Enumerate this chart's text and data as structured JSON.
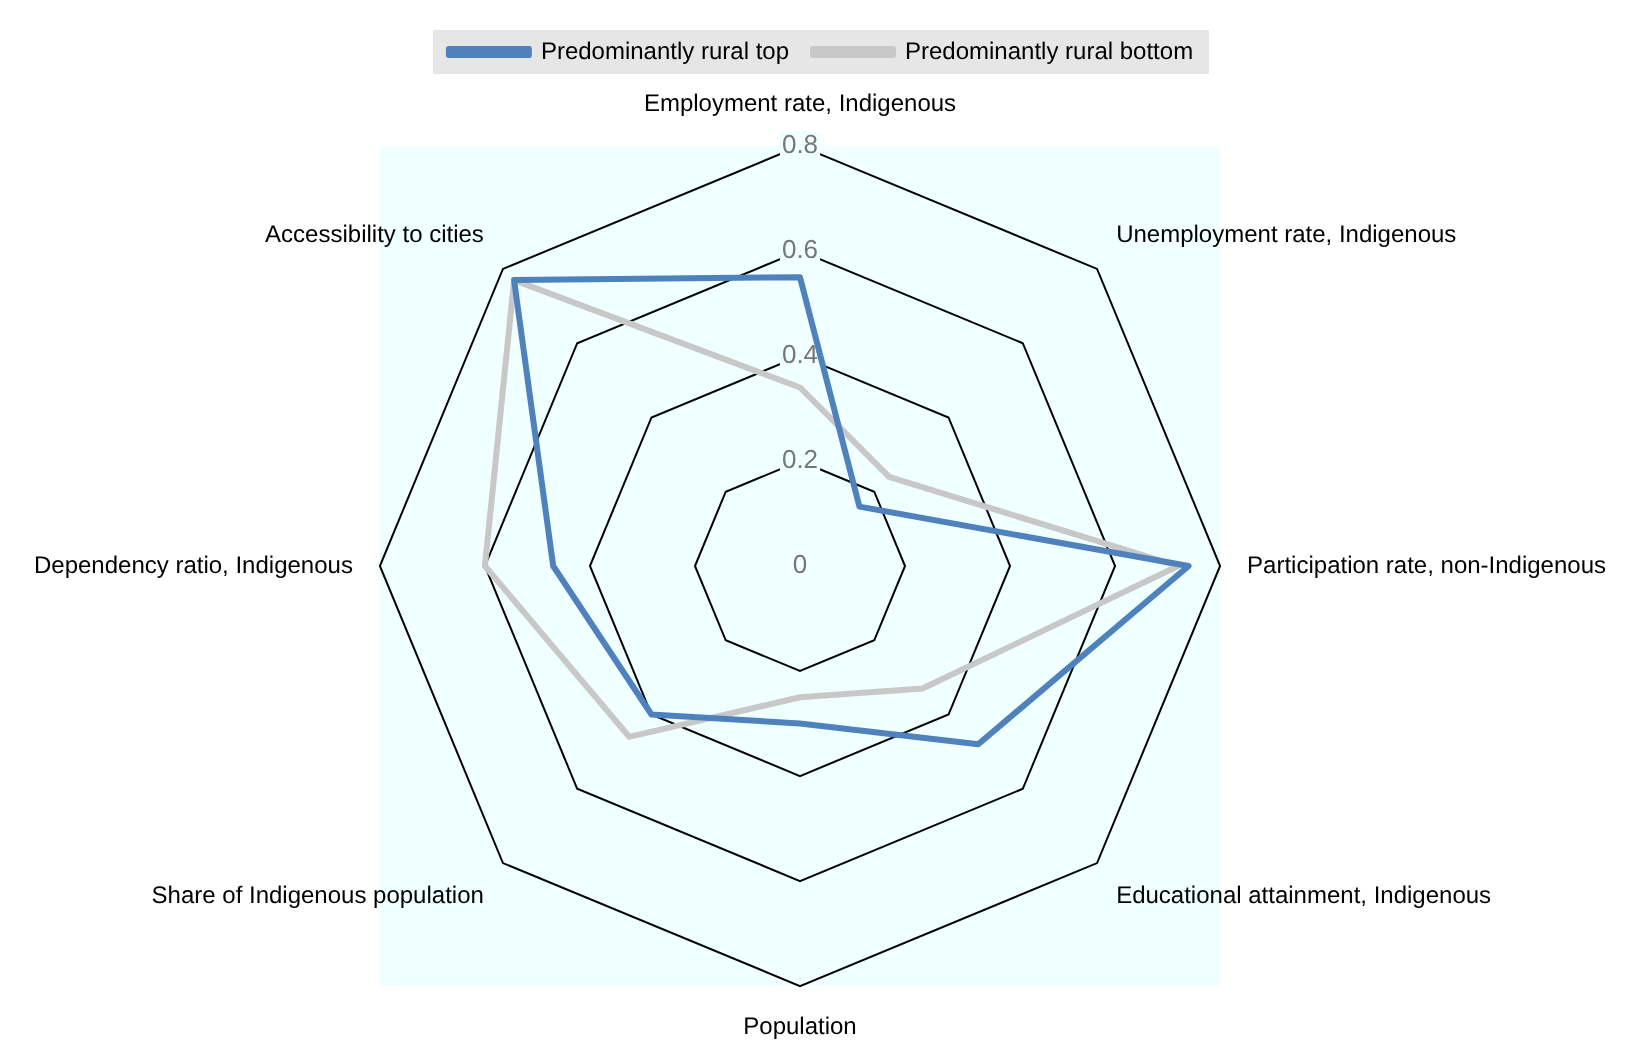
{
  "chart_data": {
    "type": "radar",
    "categories": [
      "Employment rate, Indigenous",
      "Unemployment rate, Indigenous",
      "Participation rate, non-Indigenous",
      "Educational attainment, Indigenous",
      "Population",
      "Share of Indigenous population",
      "Dependency ratio, Indigenous",
      "Accessibility to cities"
    ],
    "series": [
      {
        "name": "Predominantly rural top",
        "color": "#4f81bd",
        "values": [
          0.55,
          0.16,
          0.74,
          0.48,
          0.3,
          0.4,
          0.47,
          0.77
        ]
      },
      {
        "name": "Predominantly rural bottom",
        "color": "#c8c8c8",
        "values": [
          0.34,
          0.24,
          0.72,
          0.33,
          0.25,
          0.46,
          0.6,
          0.77
        ]
      }
    ],
    "ylim": [
      0,
      0.8
    ],
    "yticks": [
      0,
      0.2,
      0.4,
      0.6,
      0.8
    ],
    "grid": true,
    "legend": "top",
    "marker": "none",
    "line_style": "solid"
  }
}
